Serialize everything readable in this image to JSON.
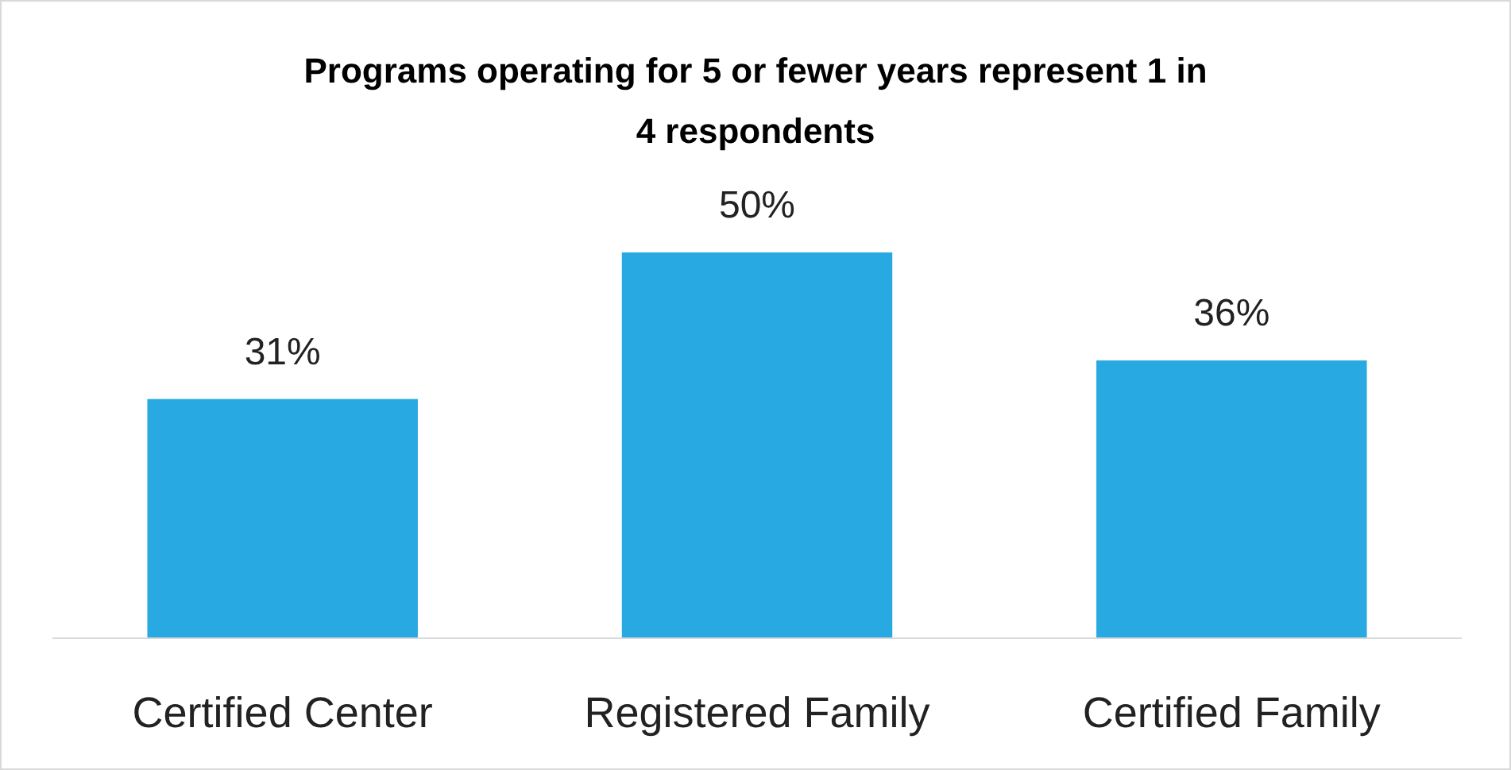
{
  "chart_data": {
    "type": "bar",
    "title": "Programs operating for 5 or fewer years represent 1 in 4 respondents",
    "categories": [
      "Certified Center",
      "Registered Family",
      "Certified Family"
    ],
    "values": [
      31,
      50,
      36
    ],
    "value_labels": [
      "31%",
      "50%",
      "36%"
    ],
    "color": "#29a9e1"
  }
}
